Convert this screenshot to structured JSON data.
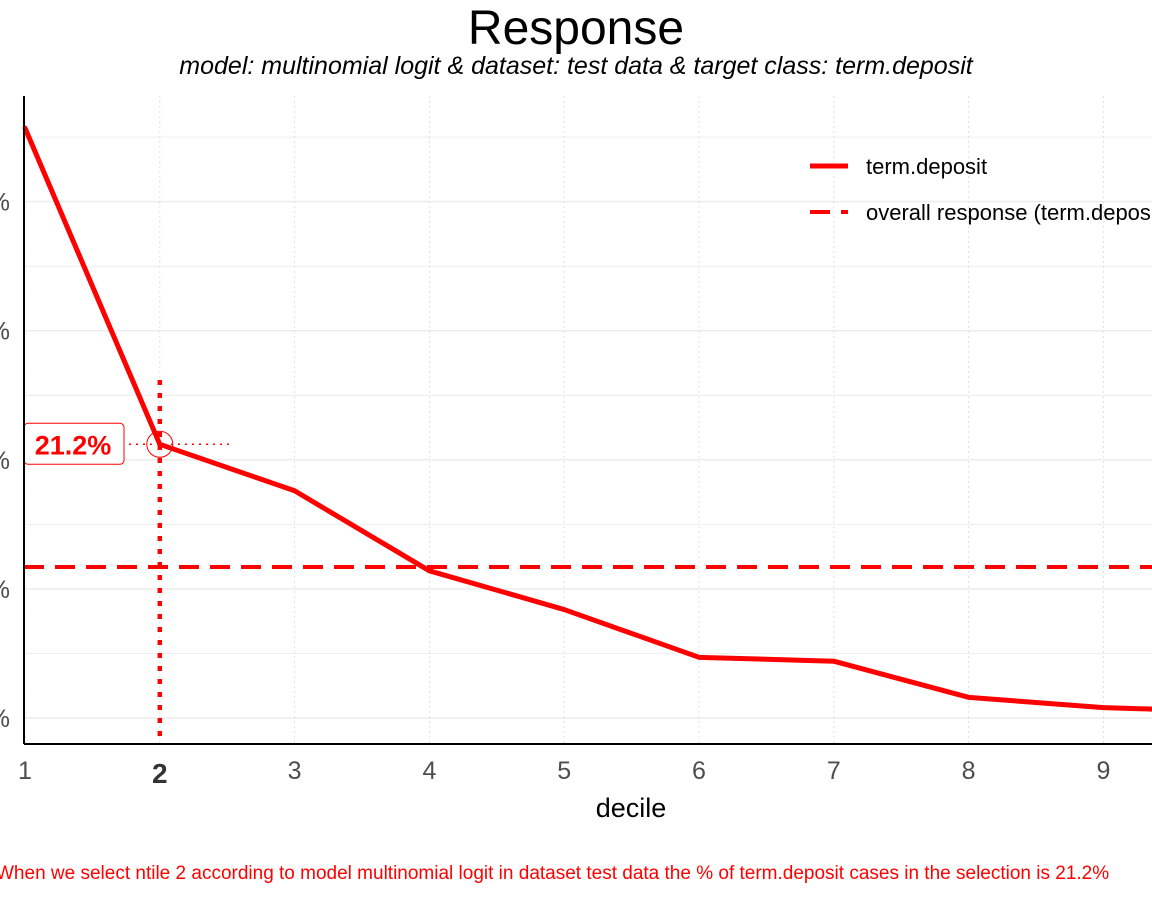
{
  "chart_data": {
    "type": "line",
    "title": "Response",
    "subtitle": "model: multinomial logit  &  dataset: test data  &  target class: term.deposit",
    "xlabel": "decile",
    "ylabel": "",
    "x": [
      1,
      2,
      3,
      4,
      5,
      6,
      7,
      8,
      9,
      10
    ],
    "x_tick_labels": [
      "1",
      "2",
      "3",
      "4",
      "5",
      "6",
      "7",
      "8",
      "9"
    ],
    "y_tick_labels": [
      "%",
      "%",
      "%",
      "%",
      "%"
    ],
    "ylim": [
      0,
      50
    ],
    "grid": true,
    "legend_position": "top-right",
    "series": [
      {
        "name": "term.deposit",
        "style": "solid",
        "values": [
          45.7,
          21.2,
          17.6,
          11.4,
          8.4,
          4.7,
          4.4,
          1.6,
          0.8,
          0.5
        ]
      },
      {
        "name": "overall response (term.deposit)",
        "style": "dashed",
        "values": [
          11.7,
          11.7,
          11.7,
          11.7,
          11.7,
          11.7,
          11.7,
          11.7,
          11.7,
          11.7
        ]
      }
    ],
    "highlight": {
      "decile": 2,
      "value": 21.2,
      "label": "21.2%"
    },
    "caption": "When we select ntile 2 according to model multinomial logit in dataset test data the % of term.deposit cases in the selection is 21.2%",
    "colors": {
      "series": "#ff0000",
      "grid": "#ebebeb",
      "axis": "#000000",
      "tick_text": "#4d4d4d"
    }
  }
}
